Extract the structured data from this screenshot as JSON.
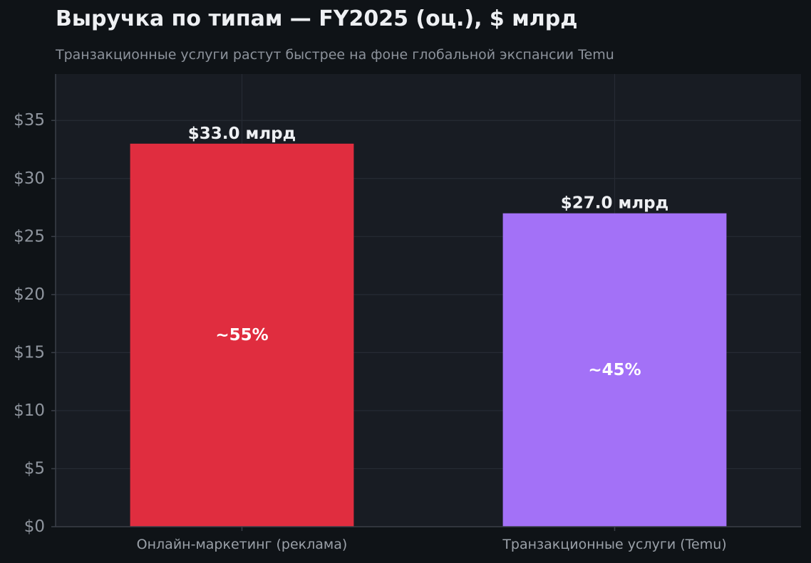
{
  "chart_data": {
    "type": "bar",
    "title": "Выручка по типам — FY2025 (оц.), $ млрд",
    "subtitle": "Транзакционные услуги растут быстрее на фоне глобальной экспансии Temu",
    "categories": [
      "Онлайн-маркетинг (реклама)",
      "Транзакционные услуги (Temu)"
    ],
    "values": [
      33.0,
      27.0
    ],
    "value_labels": [
      "$33.0 млрд",
      "$27.0 млрд"
    ],
    "share_labels": [
      "~55%",
      "~45%"
    ],
    "colors": [
      "#e02d3f",
      "#a371f7"
    ],
    "ylim": [
      0,
      39
    ],
    "yticks": [
      0,
      5,
      10,
      15,
      20,
      25,
      30,
      35
    ],
    "ytick_labels": [
      "$0",
      "$5",
      "$10",
      "$15",
      "$20",
      "$25",
      "$30",
      "$35"
    ],
    "xlabel": "",
    "ylabel": "",
    "grid": true,
    "legend": "none",
    "theme": {
      "page_bg": "#0f1317",
      "plot_bg": "#181c23",
      "grid_color": "#262b34",
      "axis_color": "#3a3f48"
    }
  }
}
